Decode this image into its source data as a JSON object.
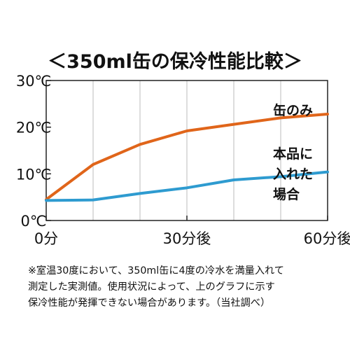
{
  "chart_data": {
    "type": "line",
    "title": "＜350ml缶の保冷性能比較＞",
    "xlabel": "",
    "ylabel": "",
    "x": [
      0,
      10,
      20,
      30,
      40,
      50,
      60
    ],
    "x_ticks": [
      {
        "value": 0,
        "label": "0分"
      },
      {
        "value": 30,
        "label": "30分後"
      },
      {
        "value": 60,
        "label": "60分後"
      }
    ],
    "y_ticks": [
      {
        "value": 0,
        "label": "0℃"
      },
      {
        "value": 10,
        "label": "10℃"
      },
      {
        "value": 20,
        "label": "20℃"
      },
      {
        "value": 30,
        "label": "30℃"
      }
    ],
    "xlim": [
      0,
      60
    ],
    "ylim": [
      0,
      30
    ],
    "grid": "vertical",
    "legend_placement": "right",
    "series": [
      {
        "name": "缶のみ",
        "color": "#E0651A",
        "values": [
          4.5,
          12,
          16.3,
          19.2,
          20.6,
          22.0,
          22.8
        ]
      },
      {
        "name": "本品に入れた場合",
        "color": "#2E9BD0",
        "values": [
          4.3,
          4.4,
          5.8,
          7.0,
          8.7,
          9.4,
          10.4
        ]
      }
    ]
  },
  "legend": {
    "can_only": "缶のみ",
    "product_lines": [
      "本品に",
      "入れた",
      "場合"
    ]
  },
  "note": {
    "lines": [
      "※室温30度において、350ml缶に4度の冷水を満量入れて",
      "測定した実測値。使用状況によって、上のグラフに示す",
      "保冷性能が発揮できない場合があります。（当社調べ）"
    ]
  },
  "colors": {
    "axis": "#222222",
    "grid": "#bbbbbb"
  }
}
